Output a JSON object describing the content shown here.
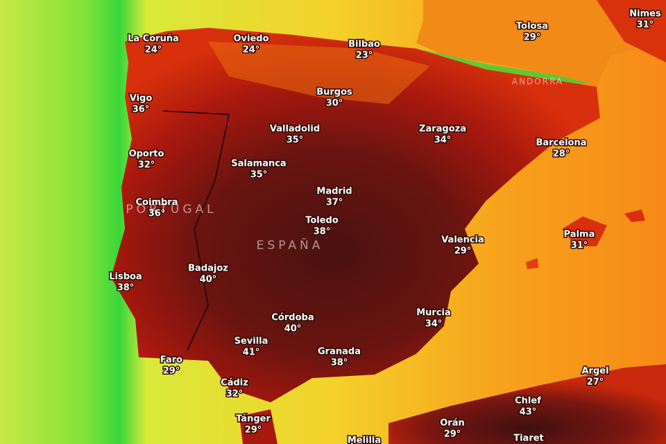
{
  "cities": [
    {
      "name": "La Coruña",
      "temp": "24°"
    },
    {
      "name": "Oviedo",
      "temp": "24°"
    },
    {
      "name": "Bilbao",
      "temp": "23°"
    },
    {
      "name": "Tolosa",
      "temp": "29°"
    },
    {
      "name": "Nimes",
      "temp": "31°"
    },
    {
      "name": "Vigo",
      "temp": "36°"
    },
    {
      "name": "Burgos",
      "temp": "30°"
    },
    {
      "name": "Valladolid",
      "temp": "35°"
    },
    {
      "name": "Zaragoza",
      "temp": "34°"
    },
    {
      "name": "Barcelona",
      "temp": "28°"
    },
    {
      "name": "Oporto",
      "temp": "32°"
    },
    {
      "name": "Salamanca",
      "temp": "35°"
    },
    {
      "name": "Madrid",
      "temp": "37°"
    },
    {
      "name": "Coimbra",
      "temp": "36°"
    },
    {
      "name": "Toledo",
      "temp": "38°"
    },
    {
      "name": "Palma",
      "temp": "31°"
    },
    {
      "name": "Valencia",
      "temp": "29°"
    },
    {
      "name": "Lisboa",
      "temp": "38°"
    },
    {
      "name": "Badajoz",
      "temp": "40°"
    },
    {
      "name": "Murcia",
      "temp": "34°"
    },
    {
      "name": "Córdoba",
      "temp": "40°"
    },
    {
      "name": "Sevilla",
      "temp": "41°"
    },
    {
      "name": "Granada",
      "temp": "38°"
    },
    {
      "name": "Faro",
      "temp": "29°"
    },
    {
      "name": "Argel",
      "temp": "27°"
    },
    {
      "name": "Cádiz",
      "temp": "32°"
    },
    {
      "name": "Chlef",
      "temp": "43°"
    },
    {
      "name": "Tánger",
      "temp": "29°"
    },
    {
      "name": "Orán",
      "temp": "29°"
    },
    {
      "name": "Tiaret"
    },
    {
      "name": "Melilla"
    }
  ],
  "regions": [
    "PORTUGAL",
    "ESPAÑA",
    "ANDORRA"
  ]
}
